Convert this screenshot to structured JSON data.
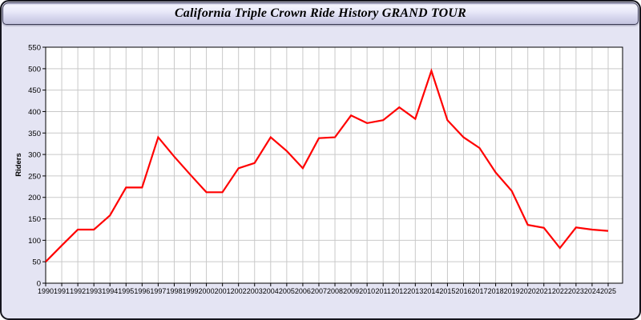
{
  "chart_data": {
    "type": "line",
    "title": "California Triple Crown Ride History GRAND TOUR",
    "xlabel": "",
    "ylabel": "Riders",
    "x": [
      1990,
      1991,
      1992,
      1993,
      1994,
      1995,
      1996,
      1997,
      1998,
      1999,
      2000,
      2001,
      2002,
      2003,
      2004,
      2005,
      2006,
      2007,
      2008,
      2009,
      2010,
      2011,
      2012,
      2013,
      2014,
      2015,
      2016,
      2017,
      2018,
      2019,
      2020,
      2021,
      2022,
      2023,
      2024,
      2025
    ],
    "series": [
      {
        "name": "Riders",
        "values": [
          50,
          88,
          125,
          125,
          158,
          223,
          223,
          340,
          295,
          253,
          212,
          212,
          268,
          280,
          340,
          308,
          268,
          338,
          340,
          391,
          373,
          380,
          410,
          383,
          495,
          380,
          340,
          315,
          258,
          215,
          136,
          129,
          82,
          130,
          125,
          122
        ]
      }
    ],
    "ylim": [
      0,
      550
    ],
    "ytick_step": 50,
    "grid": true,
    "legend": false
  },
  "colors": {
    "line": "#ff0000",
    "grid": "#c9c9c9",
    "axis": "#000000",
    "plot_bg": "#ffffff",
    "page_bg": "#e4e4f3",
    "tick_text": "#000000"
  }
}
